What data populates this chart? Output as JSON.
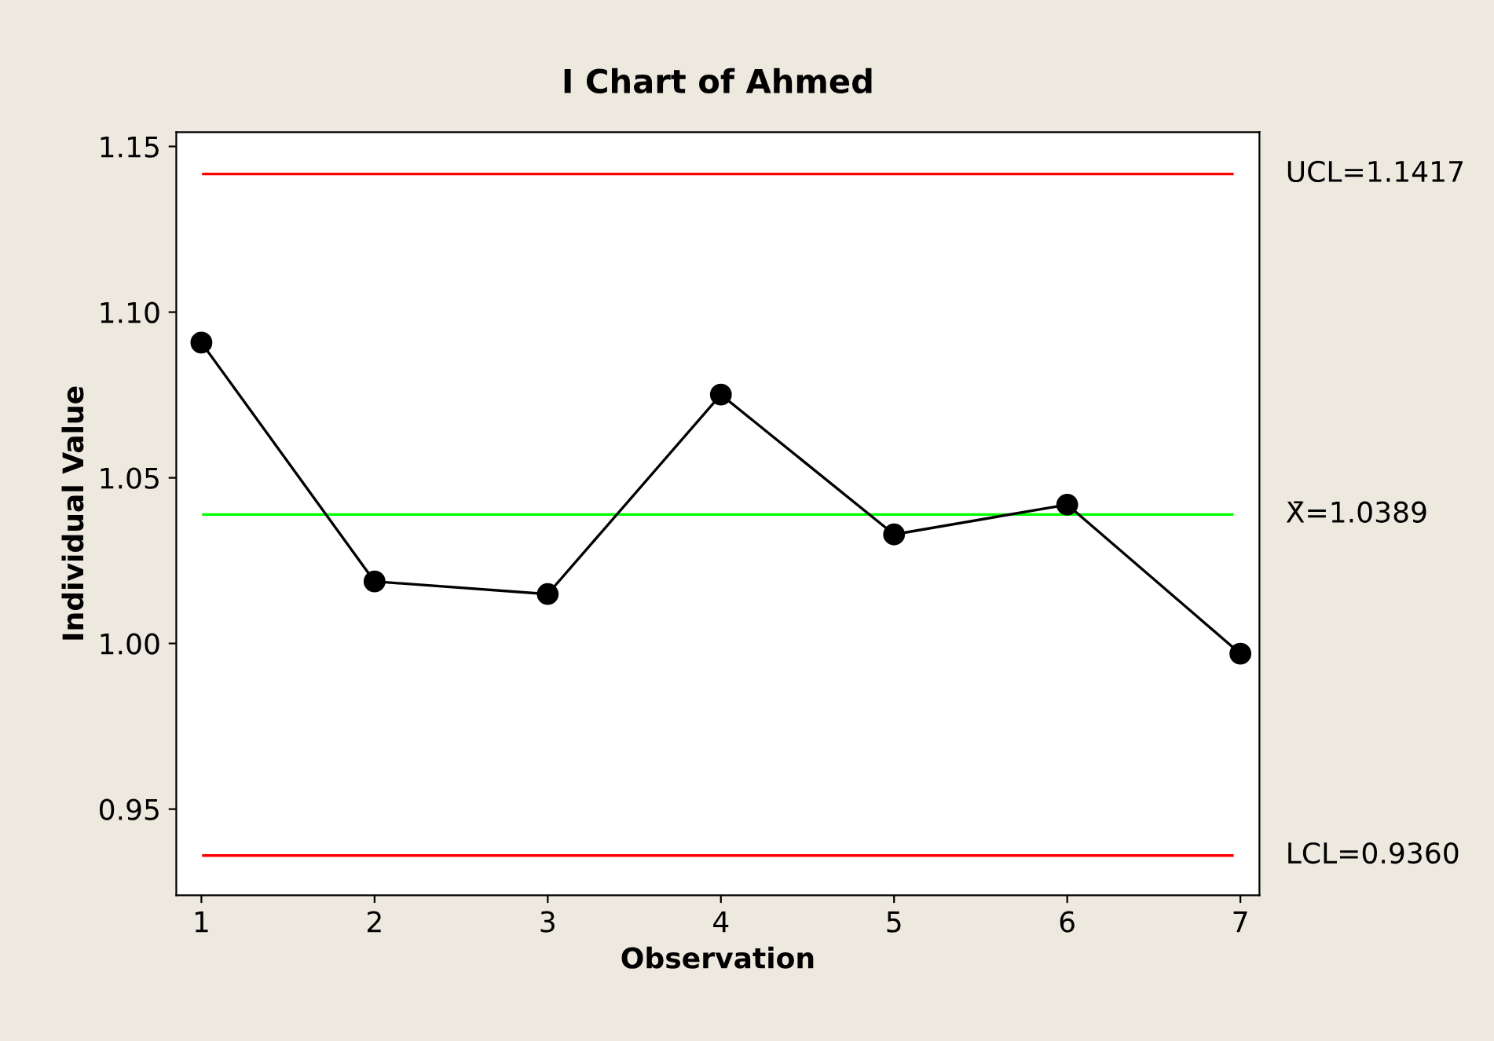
{
  "chart_data": {
    "type": "line",
    "title": "I Chart of Ahmed",
    "xlabel": "Observation",
    "ylabel": "Individual Value",
    "x": [
      1,
      2,
      3,
      4,
      5,
      6,
      7
    ],
    "series": [
      {
        "color": "#000000",
        "values": [
          1.0908,
          1.0187,
          1.0149,
          1.0751,
          1.0329,
          1.0419,
          0.9969
        ]
      }
    ],
    "marker": "circle",
    "line_style": "solid",
    "grid": false,
    "legend": false,
    "xlim": [
      0.855,
      7.11
    ],
    "xticks": [
      1,
      2,
      3,
      4,
      5,
      6,
      7
    ],
    "ylim": [
      0.924,
      1.1543
    ],
    "yticks": [
      0.95,
      {
        "value": 1.0,
        "label": "1.00"
      },
      1.05,
      {
        "value": 1.1,
        "label": "1.10"
      },
      1.15
    ],
    "ref_lines": [
      {
        "axis": "y",
        "value": 1.1417,
        "label": "UCL=1.1417",
        "color": "#ff0000"
      },
      {
        "axis": "y",
        "value": 1.0389,
        "label": "X̄=1.0389",
        "color": "#00ff00"
      },
      {
        "axis": "y",
        "value": 0.936,
        "label": "LCL=0.9360",
        "color": "#ff0000"
      }
    ]
  }
}
